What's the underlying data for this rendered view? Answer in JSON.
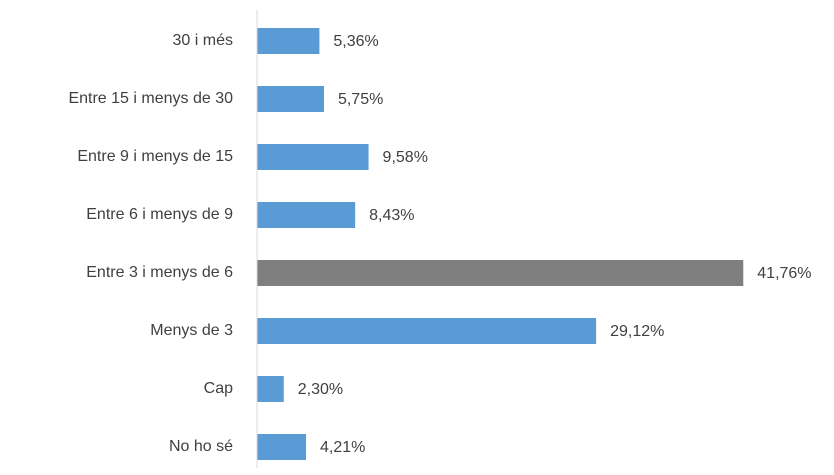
{
  "chart_data": {
    "type": "bar",
    "orientation": "horizontal",
    "categories": [
      "30 i més",
      "Entre 15 i menys de 30",
      "Entre 9 i menys de 15",
      "Entre 6 i menys de 9",
      "Entre 3 i menys de 6",
      "Menys de 3",
      "Cap",
      "No ho sé"
    ],
    "values": [
      5.36,
      5.75,
      9.58,
      8.43,
      41.76,
      29.12,
      2.3,
      4.21
    ],
    "value_labels": [
      "5,36%",
      "5,75%",
      "9,58%",
      "8,43%",
      "41,76%",
      "29,12%",
      "2,30%",
      "4,21%"
    ],
    "colors": [
      "#5b9bd5",
      "#5b9bd5",
      "#5b9bd5",
      "#5b9bd5",
      "#7f7f7f",
      "#5b9bd5",
      "#5b9bd5",
      "#5b9bd5"
    ],
    "xlim": [
      0,
      45
    ]
  }
}
